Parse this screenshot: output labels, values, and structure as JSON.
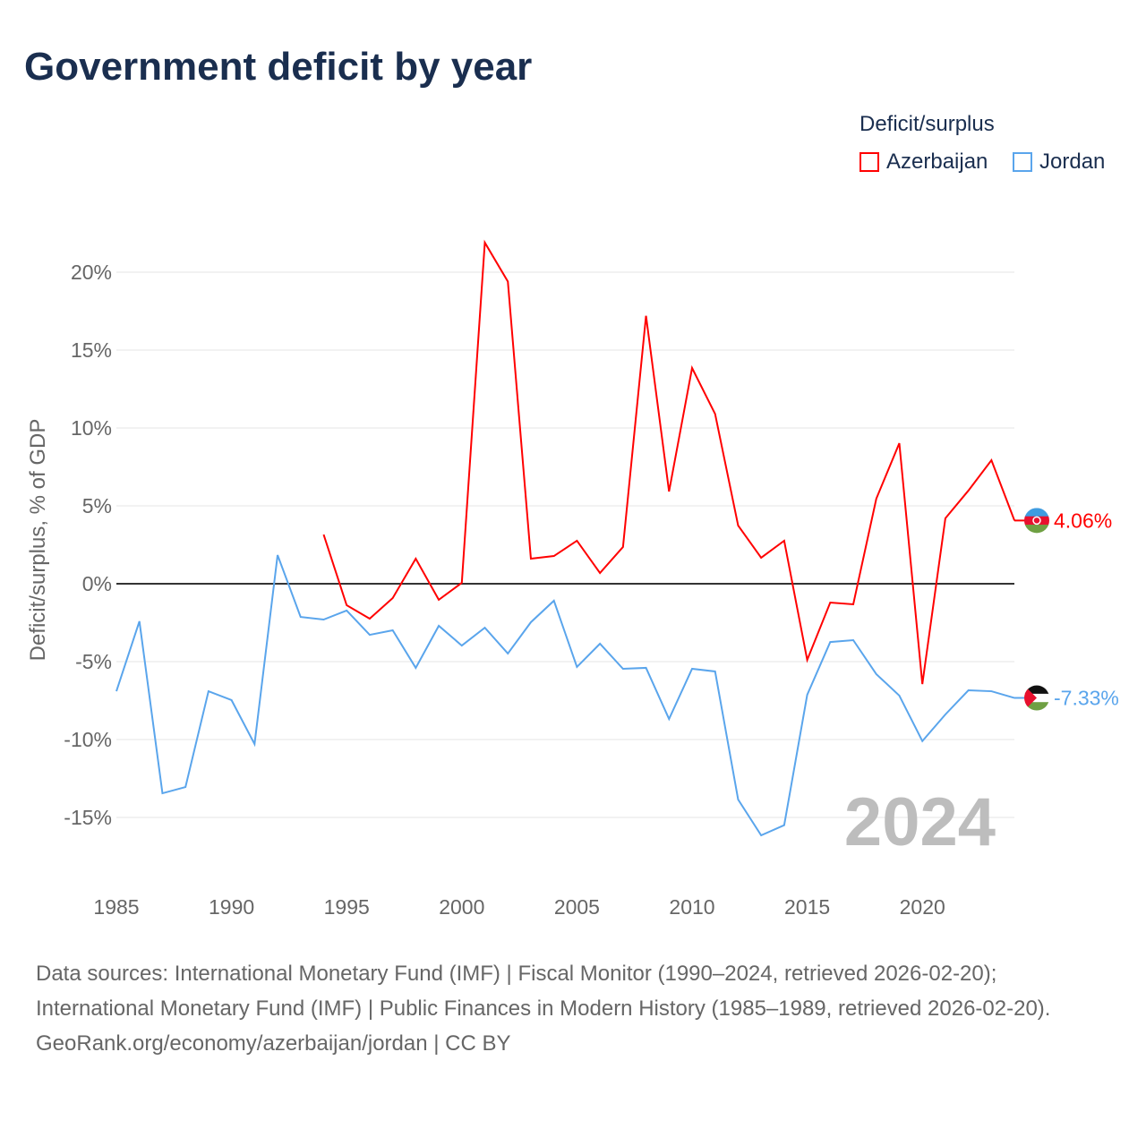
{
  "title": "Government deficit by year",
  "legend": {
    "title": "Deficit/surplus",
    "items": [
      {
        "label": "Azerbaijan",
        "color": "#ff0000"
      },
      {
        "label": "Jordan",
        "color": "#5aa5ec"
      }
    ]
  },
  "year_label": "2024",
  "source": {
    "line1": "Data sources: International Monetary Fund (IMF) | Fiscal Monitor (1990–2024, retrieved 2026-02-20); International Monetary Fund (IMF) | Public Finances in Modern History (1985–1989, retrieved 2026-02-20).",
    "line2": "GeoRank.org/economy/azerbaijan/jordan | CC BY"
  },
  "chart_data": {
    "type": "line",
    "title": "Government deficit by year",
    "xlabel": "",
    "ylabel": "Deficit/surplus, % of GDP",
    "xlim": [
      1985,
      2024
    ],
    "ylim": [
      -18,
      22
    ],
    "xticks": [
      1985,
      1990,
      1995,
      2000,
      2005,
      2010,
      2015,
      2020
    ],
    "yticks": [
      -15,
      -10,
      -5,
      0,
      5,
      10,
      15,
      20
    ],
    "ytick_labels": [
      "-15%",
      "-10%",
      "-5%",
      "0%",
      "5%",
      "10%",
      "15%",
      "20%"
    ],
    "series": [
      {
        "name": "Azerbaijan",
        "color": "#ff0000",
        "end_label": "4.06%",
        "x": [
          1994,
          1995,
          1996,
          1997,
          1998,
          1999,
          2000,
          2001,
          2002,
          2003,
          2004,
          2005,
          2006,
          2007,
          2008,
          2009,
          2010,
          2011,
          2012,
          2013,
          2014,
          2015,
          2016,
          2017,
          2018,
          2019,
          2020,
          2021,
          2022,
          2023,
          2024
        ],
        "values": [
          3.16,
          -1.38,
          -2.24,
          -0.92,
          1.61,
          -1.03,
          0.06,
          21.9,
          19.4,
          1.61,
          1.78,
          2.76,
          0.69,
          2.36,
          17.2,
          5.92,
          13.85,
          10.9,
          3.74,
          1.67,
          2.76,
          -4.89,
          -1.21,
          -1.32,
          5.46,
          9.02,
          -6.44,
          4.2,
          5.98,
          7.93,
          4.06
        ]
      },
      {
        "name": "Jordan",
        "color": "#5aa5ec",
        "end_label": "-7.33%",
        "x": [
          1985,
          1986,
          1987,
          1988,
          1989,
          1990,
          1991,
          1992,
          1993,
          1994,
          1995,
          1996,
          1997,
          1998,
          1999,
          2000,
          2001,
          2002,
          2003,
          2004,
          2005,
          2006,
          2007,
          2008,
          2009,
          2010,
          2011,
          2012,
          2013,
          2014,
          2015,
          2016,
          2017,
          2018,
          2019,
          2020,
          2021,
          2022,
          2023,
          2024
        ],
        "values": [
          -6.9,
          -2.41,
          -13.45,
          -13.05,
          -6.9,
          -7.47,
          -10.29,
          1.84,
          -2.13,
          -2.3,
          -1.72,
          -3.28,
          -2.99,
          -5.4,
          -2.7,
          -3.97,
          -2.82,
          -4.48,
          -2.47,
          -1.09,
          -5.34,
          -3.85,
          -5.46,
          -5.4,
          -8.68,
          -5.46,
          -5.63,
          -13.85,
          -16.15,
          -15.5,
          -7.13,
          -3.74,
          -3.62,
          -5.8,
          -7.18,
          -10.1,
          -8.39,
          -6.84,
          -6.9,
          -7.33
        ]
      }
    ]
  }
}
